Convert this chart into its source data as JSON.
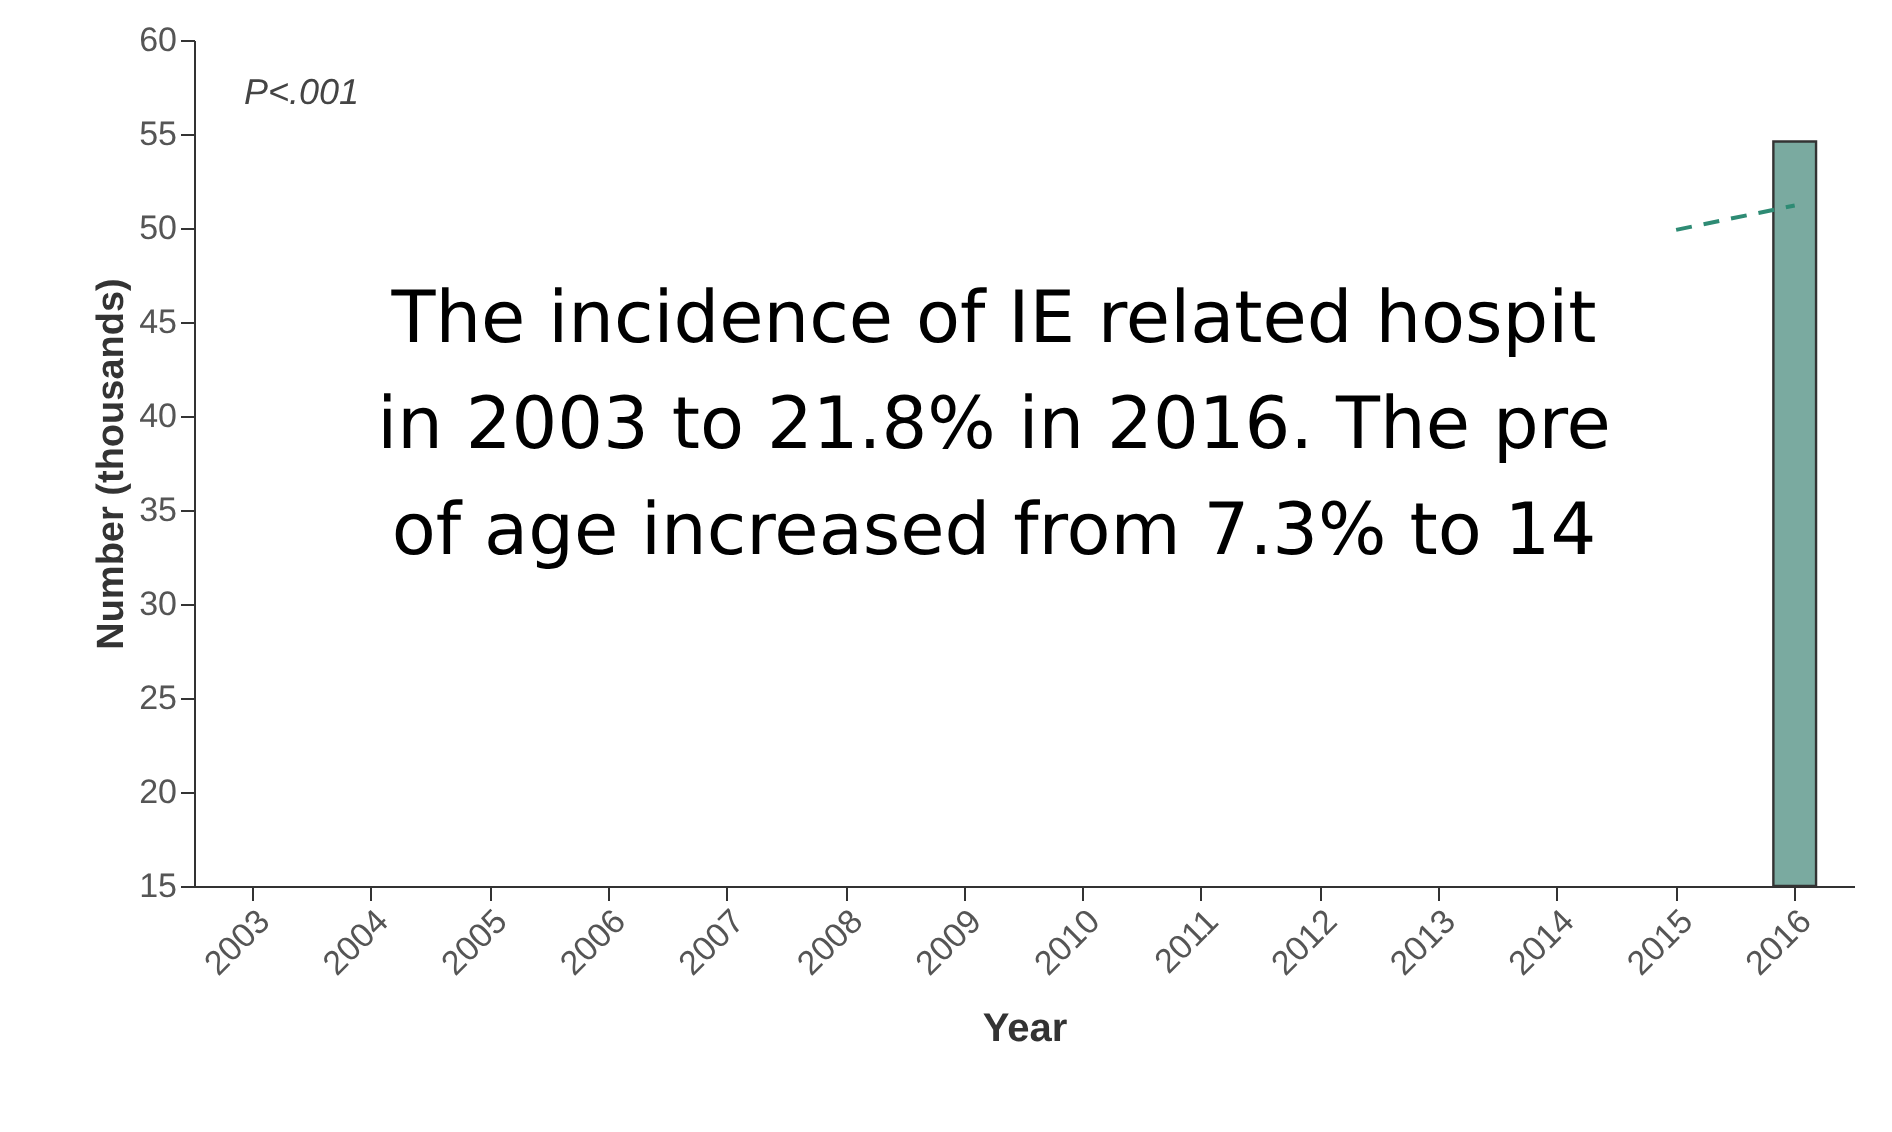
{
  "chart_data": {
    "type": "bar",
    "xlabel": "Year",
    "ylabel": "Number (thousands)",
    "categories": [
      "2003",
      "2004",
      "2005",
      "2006",
      "2007",
      "2008",
      "2009",
      "2010",
      "2011",
      "2012",
      "2013",
      "2014",
      "2015",
      "2016"
    ],
    "series": [
      {
        "color": "#7aaaa0",
        "values": [
          null,
          null,
          null,
          null,
          null,
          null,
          null,
          null,
          null,
          null,
          null,
          null,
          null,
          54.6
        ]
      },
      {
        "type": "line",
        "color": "#2e8b74",
        "line_style": "dashed",
        "values": [
          null,
          null,
          null,
          null,
          null,
          null,
          null,
          null,
          null,
          null,
          null,
          null,
          49.9,
          51.2
        ]
      }
    ],
    "ylim": [
      15,
      60
    ],
    "yticks": [
      15,
      20,
      25,
      30,
      35,
      40,
      45,
      50,
      55,
      60
    ],
    "annotations": [
      "P<.001",
      "The incidence of IE related hospit",
      "in 2003 to 21.8% in 2016. The pre",
      "of age increased from 7.3% to 14"
    ]
  }
}
